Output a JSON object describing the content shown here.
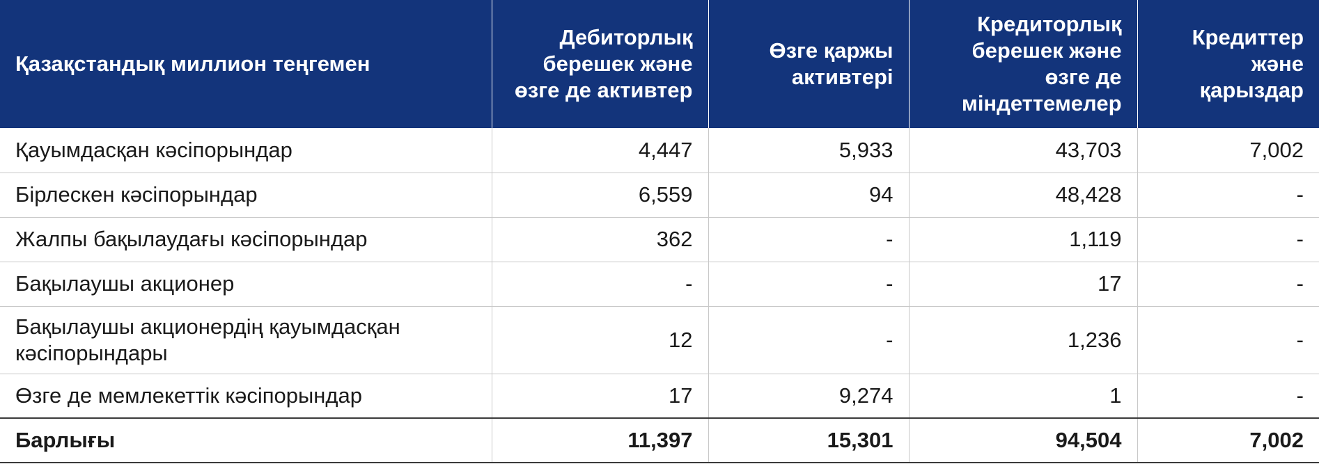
{
  "table": {
    "headers": [
      "Қазақстандық миллион теңгемен",
      "Дебиторлық берешек және өзге де активтер",
      "Өзге қаржы активтері",
      "Кредиторлық берешек және өзге де міндеттемелер",
      "Кредиттер және қарыздар"
    ],
    "rows": [
      {
        "label": "Қауымдасқан кәсіпорындар",
        "values": [
          "4,447",
          "5,933",
          "43,703",
          "7,002"
        ]
      },
      {
        "label": "Бірлескен кәсіпорындар",
        "values": [
          "6,559",
          "94",
          "48,428",
          "-"
        ]
      },
      {
        "label": "Жалпы бақылаудағы кәсіпорындар",
        "values": [
          "362",
          "-",
          "1,119",
          "-"
        ]
      },
      {
        "label": "Бақылаушы акционер",
        "values": [
          "-",
          "-",
          "17",
          "-"
        ]
      },
      {
        "label": "Бақылаушы акционердің қауымдасқан кәсіпорындары",
        "values": [
          "12",
          "-",
          "1,236",
          "-"
        ]
      },
      {
        "label": "Өзге де мемлекеттік кәсіпорындар",
        "values": [
          "17",
          "9,274",
          "1",
          "-"
        ]
      }
    ],
    "total": {
      "label": "Барлығы",
      "values": [
        "11,397",
        "15,301",
        "94,504",
        "7,002"
      ]
    }
  },
  "colors": {
    "header_background": "#13347b",
    "header_text": "#ffffff",
    "row_border": "#c8c8c8"
  }
}
